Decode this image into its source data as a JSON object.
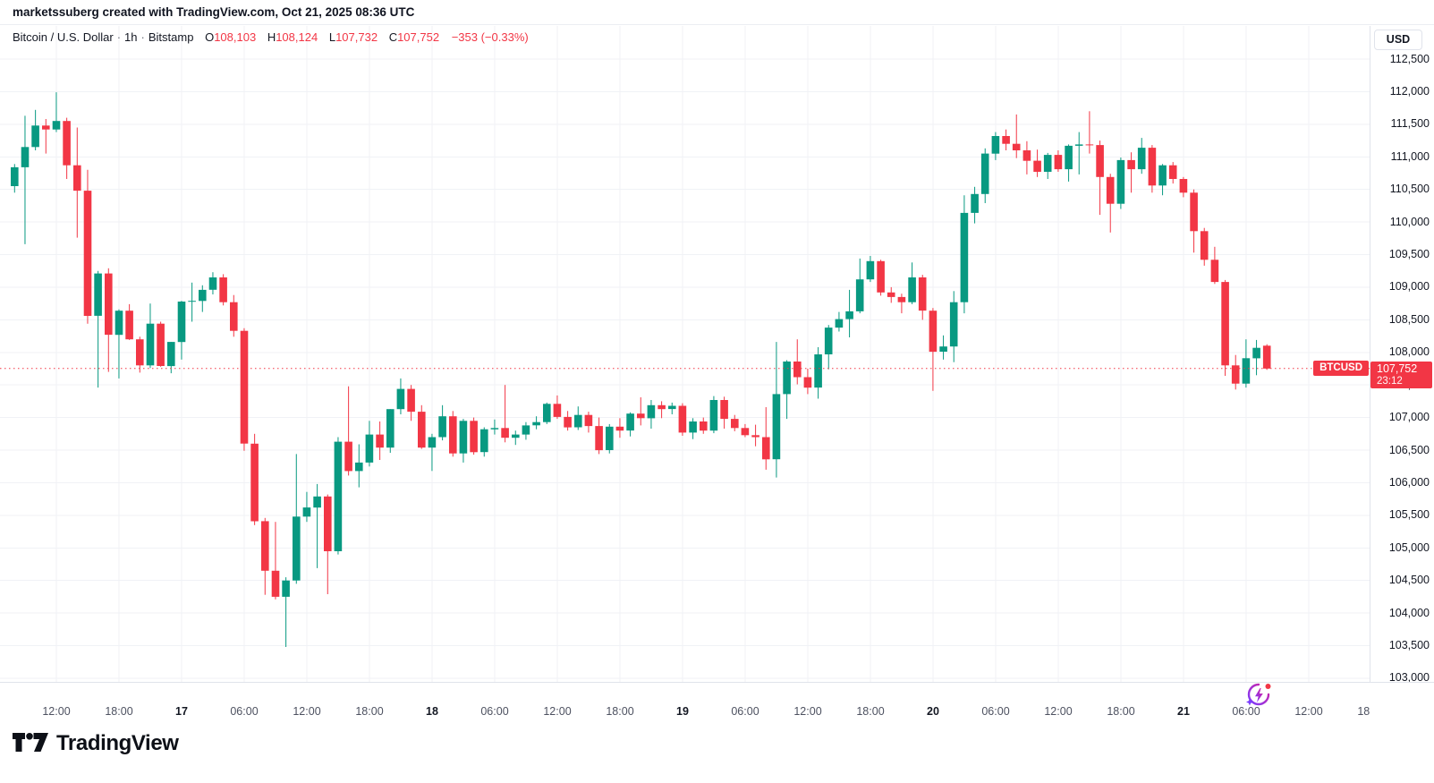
{
  "watermark": "marketssuberg created with TradingView.com, Oct 21, 2025 08:36 UTC",
  "legend": {
    "symbol": "Bitcoin / U.S. Dollar",
    "interval": "1h",
    "exchange": "Bitstamp",
    "items": [
      {
        "k": "O",
        "v": "108,103"
      },
      {
        "k": "H",
        "v": "108,124"
      },
      {
        "k": "L",
        "v": "107,732"
      },
      {
        "k": "C",
        "v": "107,752"
      }
    ],
    "change": "−353 (−0.33%)"
  },
  "symbol_tag": "BTCUSD",
  "price_axis": {
    "currency_button": "USD",
    "labels": [
      "112,500",
      "112,000",
      "111,500",
      "111,000",
      "110,500",
      "110,000",
      "109,500",
      "109,000",
      "108,500",
      "108,000",
      "107,500",
      "107,000",
      "106,500",
      "106,000",
      "105,500",
      "105,000",
      "104,500",
      "104,000",
      "103,500",
      "103,000"
    ],
    "last_price_label": "107,752",
    "countdown": "23:12"
  },
  "time_axis": {
    "ticks": [
      {
        "label": "12:00",
        "i": 4,
        "major": false
      },
      {
        "label": "18:00",
        "i": 10,
        "major": false
      },
      {
        "label": "17",
        "i": 16,
        "major": true
      },
      {
        "label": "06:00",
        "i": 22,
        "major": false
      },
      {
        "label": "12:00",
        "i": 28,
        "major": false
      },
      {
        "label": "18:00",
        "i": 34,
        "major": false
      },
      {
        "label": "18",
        "i": 40,
        "major": true
      },
      {
        "label": "06:00",
        "i": 46,
        "major": false
      },
      {
        "label": "12:00",
        "i": 52,
        "major": false
      },
      {
        "label": "18:00",
        "i": 58,
        "major": false
      },
      {
        "label": "19",
        "i": 64,
        "major": true
      },
      {
        "label": "06:00",
        "i": 70,
        "major": false
      },
      {
        "label": "12:00",
        "i": 76,
        "major": false
      },
      {
        "label": "18:00",
        "i": 82,
        "major": false
      },
      {
        "label": "20",
        "i": 88,
        "major": true
      },
      {
        "label": "06:00",
        "i": 94,
        "major": false
      },
      {
        "label": "12:00",
        "i": 100,
        "major": false
      },
      {
        "label": "18:00",
        "i": 106,
        "major": false
      },
      {
        "label": "21",
        "i": 112,
        "major": true
      },
      {
        "label": "06:00",
        "i": 118,
        "major": false
      },
      {
        "label": "12:00",
        "i": 124,
        "major": false
      },
      {
        "label": "18:00",
        "i": 130,
        "major": false
      }
    ]
  },
  "footer": {
    "logo_text": "TradingView"
  },
  "icons": {
    "bottom_right": "tv-flash-refresh-icon",
    "footer_logo": "tradingview-logo-icon"
  },
  "colors": {
    "up": "#089981",
    "down": "#f23645",
    "accent_red": "#f23645",
    "grid": "#f0f2f6",
    "axis_border": "#e0e3eb",
    "icon_purple": "#7a3cff",
    "icon_pink": "#d6219c"
  },
  "chart_data": {
    "type": "candlestick",
    "title": "Bitcoin / U.S. Dollar",
    "symbol": "BTCUSD",
    "exchange": "Bitstamp",
    "interval": "1h",
    "x_start": "Oct 16 08:00 UTC",
    "x_end": "Oct 21 08:00 UTC",
    "interval_hours": 1,
    "ylim": [
      103000,
      112500
    ],
    "y_tick_step": 500,
    "grid": true,
    "last_price": 107752,
    "last_change": -353,
    "last_change_pct": -0.33,
    "columns": [
      "time",
      "open",
      "high",
      "low",
      "close"
    ],
    "candles": [
      [
        "Oct 16 08:00",
        110550,
        110890,
        110450,
        110840
      ],
      [
        "Oct 16 09:00",
        110840,
        111630,
        109660,
        111150
      ],
      [
        "Oct 16 10:00",
        111150,
        111720,
        111100,
        111480
      ],
      [
        "Oct 16 11:00",
        111480,
        111580,
        111050,
        111420
      ],
      [
        "Oct 16 12:00",
        111420,
        111990,
        111380,
        111550
      ],
      [
        "Oct 16 13:00",
        111550,
        111600,
        110660,
        110870
      ],
      [
        "Oct 16 14:00",
        110870,
        111450,
        109760,
        110480
      ],
      [
        "Oct 16 15:00",
        110480,
        110800,
        108440,
        108560
      ],
      [
        "Oct 16 16:00",
        108560,
        109250,
        107460,
        109210
      ],
      [
        "Oct 16 17:00",
        109210,
        109290,
        107700,
        108270
      ],
      [
        "Oct 16 18:00",
        108270,
        108660,
        107600,
        108640
      ],
      [
        "Oct 16 19:00",
        108640,
        108740,
        108190,
        108200
      ],
      [
        "Oct 16 20:00",
        108200,
        108240,
        107690,
        107800
      ],
      [
        "Oct 16 21:00",
        107800,
        108750,
        107760,
        108440
      ],
      [
        "Oct 16 22:00",
        108440,
        108470,
        107780,
        107790
      ],
      [
        "Oct 16 23:00",
        107790,
        108160,
        107680,
        108160
      ],
      [
        "Oct 17 00:00",
        108160,
        108790,
        107890,
        108780
      ],
      [
        "Oct 17 01:00",
        108780,
        109070,
        108470,
        108790
      ],
      [
        "Oct 17 02:00",
        108790,
        109030,
        108620,
        108960
      ],
      [
        "Oct 17 03:00",
        108960,
        109230,
        108890,
        109150
      ],
      [
        "Oct 17 04:00",
        109150,
        109200,
        108720,
        108770
      ],
      [
        "Oct 17 05:00",
        108770,
        108880,
        108240,
        108330
      ],
      [
        "Oct 17 06:00",
        108330,
        108370,
        106490,
        106600
      ],
      [
        "Oct 17 07:00",
        106600,
        106750,
        105350,
        105410
      ],
      [
        "Oct 17 08:00",
        105410,
        105460,
        104280,
        104650
      ],
      [
        "Oct 17 09:00",
        104650,
        105400,
        104210,
        104250
      ],
      [
        "Oct 17 10:00",
        104250,
        104550,
        103480,
        104500
      ],
      [
        "Oct 17 11:00",
        104500,
        106440,
        104450,
        105480
      ],
      [
        "Oct 17 12:00",
        105480,
        105860,
        105400,
        105620
      ],
      [
        "Oct 17 13:00",
        105620,
        105980,
        104690,
        105790
      ],
      [
        "Oct 17 14:00",
        105790,
        105820,
        104290,
        104950
      ],
      [
        "Oct 17 15:00",
        104950,
        106700,
        104900,
        106630
      ],
      [
        "Oct 17 16:00",
        106630,
        107480,
        106110,
        106180
      ],
      [
        "Oct 17 17:00",
        106180,
        106590,
        105930,
        106310
      ],
      [
        "Oct 17 18:00",
        106310,
        106950,
        106250,
        106740
      ],
      [
        "Oct 17 19:00",
        106740,
        106940,
        106350,
        106540
      ],
      [
        "Oct 17 20:00",
        106540,
        107130,
        106460,
        107130
      ],
      [
        "Oct 17 21:00",
        107130,
        107600,
        107050,
        107440
      ],
      [
        "Oct 17 22:00",
        107440,
        107500,
        106950,
        107090
      ],
      [
        "Oct 17 23:00",
        107090,
        107190,
        106520,
        106540
      ],
      [
        "Oct 18 00:00",
        106540,
        106750,
        106180,
        106700
      ],
      [
        "Oct 18 01:00",
        106700,
        107190,
        106650,
        107020
      ],
      [
        "Oct 18 02:00",
        107020,
        107100,
        106400,
        106450
      ],
      [
        "Oct 18 03:00",
        106450,
        106980,
        106310,
        106950
      ],
      [
        "Oct 18 04:00",
        106950,
        107000,
        106430,
        106470
      ],
      [
        "Oct 18 05:00",
        106470,
        106850,
        106400,
        106820
      ],
      [
        "Oct 18 06:00",
        106820,
        106970,
        106740,
        106840
      ],
      [
        "Oct 18 07:00",
        106840,
        107500,
        106620,
        106690
      ],
      [
        "Oct 18 08:00",
        106690,
        106800,
        106580,
        106740
      ],
      [
        "Oct 18 09:00",
        106740,
        106930,
        106660,
        106880
      ],
      [
        "Oct 18 10:00",
        106880,
        107020,
        106820,
        106930
      ],
      [
        "Oct 18 11:00",
        106930,
        107230,
        106900,
        107210
      ],
      [
        "Oct 18 12:00",
        107210,
        107340,
        106980,
        107010
      ],
      [
        "Oct 18 13:00",
        107010,
        107100,
        106800,
        106850
      ],
      [
        "Oct 18 14:00",
        106850,
        107170,
        106810,
        107040
      ],
      [
        "Oct 18 15:00",
        107040,
        107090,
        106770,
        106870
      ],
      [
        "Oct 18 16:00",
        106870,
        107000,
        106440,
        106500
      ],
      [
        "Oct 18 17:00",
        106500,
        106900,
        106450,
        106860
      ],
      [
        "Oct 18 18:00",
        106860,
        106990,
        106690,
        106800
      ],
      [
        "Oct 18 19:00",
        106800,
        107080,
        106710,
        107060
      ],
      [
        "Oct 18 20:00",
        107060,
        107310,
        106880,
        106990
      ],
      [
        "Oct 18 21:00",
        106990,
        107270,
        106830,
        107190
      ],
      [
        "Oct 18 22:00",
        107190,
        107250,
        106990,
        107130
      ],
      [
        "Oct 18 23:00",
        107130,
        107230,
        107050,
        107180
      ],
      [
        "Oct 19 00:00",
        107180,
        107220,
        106720,
        106770
      ],
      [
        "Oct 19 01:00",
        106770,
        106990,
        106670,
        106940
      ],
      [
        "Oct 19 02:00",
        106940,
        107000,
        106750,
        106800
      ],
      [
        "Oct 19 03:00",
        106800,
        107330,
        106760,
        107270
      ],
      [
        "Oct 19 04:00",
        107270,
        107320,
        106830,
        106980
      ],
      [
        "Oct 19 05:00",
        106980,
        107040,
        106790,
        106840
      ],
      [
        "Oct 19 06:00",
        106840,
        106900,
        106700,
        106730
      ],
      [
        "Oct 19 07:00",
        106730,
        106890,
        106560,
        106700
      ],
      [
        "Oct 19 08:00",
        106700,
        107160,
        106200,
        106360
      ],
      [
        "Oct 19 09:00",
        106360,
        108160,
        106080,
        107360
      ],
      [
        "Oct 19 10:00",
        107360,
        107880,
        106980,
        107860
      ],
      [
        "Oct 19 11:00",
        107860,
        108200,
        107510,
        107620
      ],
      [
        "Oct 19 12:00",
        107620,
        107750,
        107360,
        107460
      ],
      [
        "Oct 19 13:00",
        107460,
        108080,
        107290,
        107970
      ],
      [
        "Oct 19 14:00",
        107970,
        108420,
        107740,
        108380
      ],
      [
        "Oct 19 15:00",
        108380,
        108620,
        108320,
        108510
      ],
      [
        "Oct 19 16:00",
        108510,
        108960,
        108230,
        108630
      ],
      [
        "Oct 19 17:00",
        108630,
        109440,
        108600,
        109120
      ],
      [
        "Oct 19 18:00",
        109120,
        109480,
        109080,
        109400
      ],
      [
        "Oct 19 19:00",
        109400,
        109420,
        108870,
        108920
      ],
      [
        "Oct 19 20:00",
        108920,
        109000,
        108760,
        108850
      ],
      [
        "Oct 19 21:00",
        108850,
        108900,
        108600,
        108770
      ],
      [
        "Oct 19 22:00",
        108770,
        109380,
        108740,
        109150
      ],
      [
        "Oct 19 23:00",
        109150,
        109190,
        108500,
        108640
      ],
      [
        "Oct 20 00:00",
        108640,
        108680,
        107410,
        108010
      ],
      [
        "Oct 20 01:00",
        108010,
        108260,
        107890,
        108090
      ],
      [
        "Oct 20 02:00",
        108090,
        108940,
        107850,
        108770
      ],
      [
        "Oct 20 03:00",
        108770,
        110410,
        108600,
        110140
      ],
      [
        "Oct 20 04:00",
        110140,
        110540,
        109980,
        110430
      ],
      [
        "Oct 20 05:00",
        110430,
        111130,
        110290,
        111050
      ],
      [
        "Oct 20 06:00",
        111050,
        111380,
        110950,
        111320
      ],
      [
        "Oct 20 07:00",
        111320,
        111420,
        111100,
        111200
      ],
      [
        "Oct 20 08:00",
        111200,
        111650,
        110980,
        111100
      ],
      [
        "Oct 20 09:00",
        111100,
        111240,
        110730,
        110940
      ],
      [
        "Oct 20 10:00",
        110940,
        111110,
        110690,
        110770
      ],
      [
        "Oct 20 11:00",
        110770,
        111060,
        110660,
        111030
      ],
      [
        "Oct 20 12:00",
        111030,
        111100,
        110770,
        110810
      ],
      [
        "Oct 20 13:00",
        110810,
        111190,
        110620,
        111170
      ],
      [
        "Oct 20 14:00",
        111170,
        111380,
        110730,
        111190
      ],
      [
        "Oct 20 15:00",
        111190,
        111700,
        111050,
        111180
      ],
      [
        "Oct 20 16:00",
        111180,
        111250,
        110110,
        110690
      ],
      [
        "Oct 20 17:00",
        110690,
        110740,
        109840,
        110280
      ],
      [
        "Oct 20 18:00",
        110280,
        110990,
        110200,
        110950
      ],
      [
        "Oct 20 19:00",
        110950,
        111070,
        110450,
        110810
      ],
      [
        "Oct 20 20:00",
        110810,
        111290,
        110740,
        111140
      ],
      [
        "Oct 20 21:00",
        111140,
        111180,
        110450,
        110560
      ],
      [
        "Oct 20 22:00",
        110560,
        110890,
        110410,
        110870
      ],
      [
        "Oct 20 23:00",
        110870,
        110920,
        110590,
        110660
      ],
      [
        "Oct 21 00:00",
        110660,
        110690,
        110380,
        110450
      ],
      [
        "Oct 21 01:00",
        110450,
        110500,
        109530,
        109860
      ],
      [
        "Oct 21 02:00",
        109860,
        109910,
        109330,
        109420
      ],
      [
        "Oct 21 03:00",
        109420,
        109620,
        109050,
        109080
      ],
      [
        "Oct 21 04:00",
        109080,
        109110,
        107640,
        107800
      ],
      [
        "Oct 21 05:00",
        107800,
        107960,
        107430,
        107520
      ],
      [
        "Oct 21 06:00",
        107520,
        108200,
        107460,
        107910
      ],
      [
        "Oct 21 07:00",
        107910,
        108190,
        107650,
        108070
      ],
      [
        "Oct 21 08:00",
        108103,
        108124,
        107732,
        107752
      ]
    ]
  }
}
